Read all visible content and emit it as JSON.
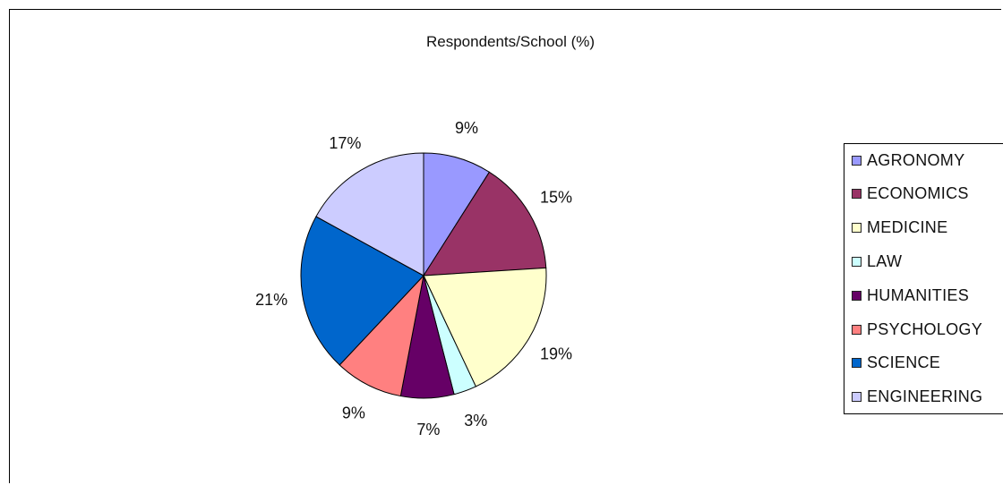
{
  "chart_data": {
    "type": "pie",
    "title": "Respondents/School (%)",
    "categories": [
      "AGRONOMY",
      "ECONOMICS",
      "MEDICINE",
      "LAW",
      "HUMANITIES",
      "PSYCHOLOGY",
      "SCIENCE",
      "ENGINEERING"
    ],
    "values": [
      9,
      15,
      19,
      3,
      7,
      9,
      21,
      17
    ],
    "labels": [
      "9%",
      "15%",
      "19%",
      "3%",
      "7%",
      "9%",
      "21%",
      "17%"
    ],
    "colors": [
      "#9999ff",
      "#993366",
      "#ffffcc",
      "#ccffff",
      "#660066",
      "#ff8080",
      "#0066cc",
      "#ccccff"
    ],
    "legend_position": "right"
  }
}
